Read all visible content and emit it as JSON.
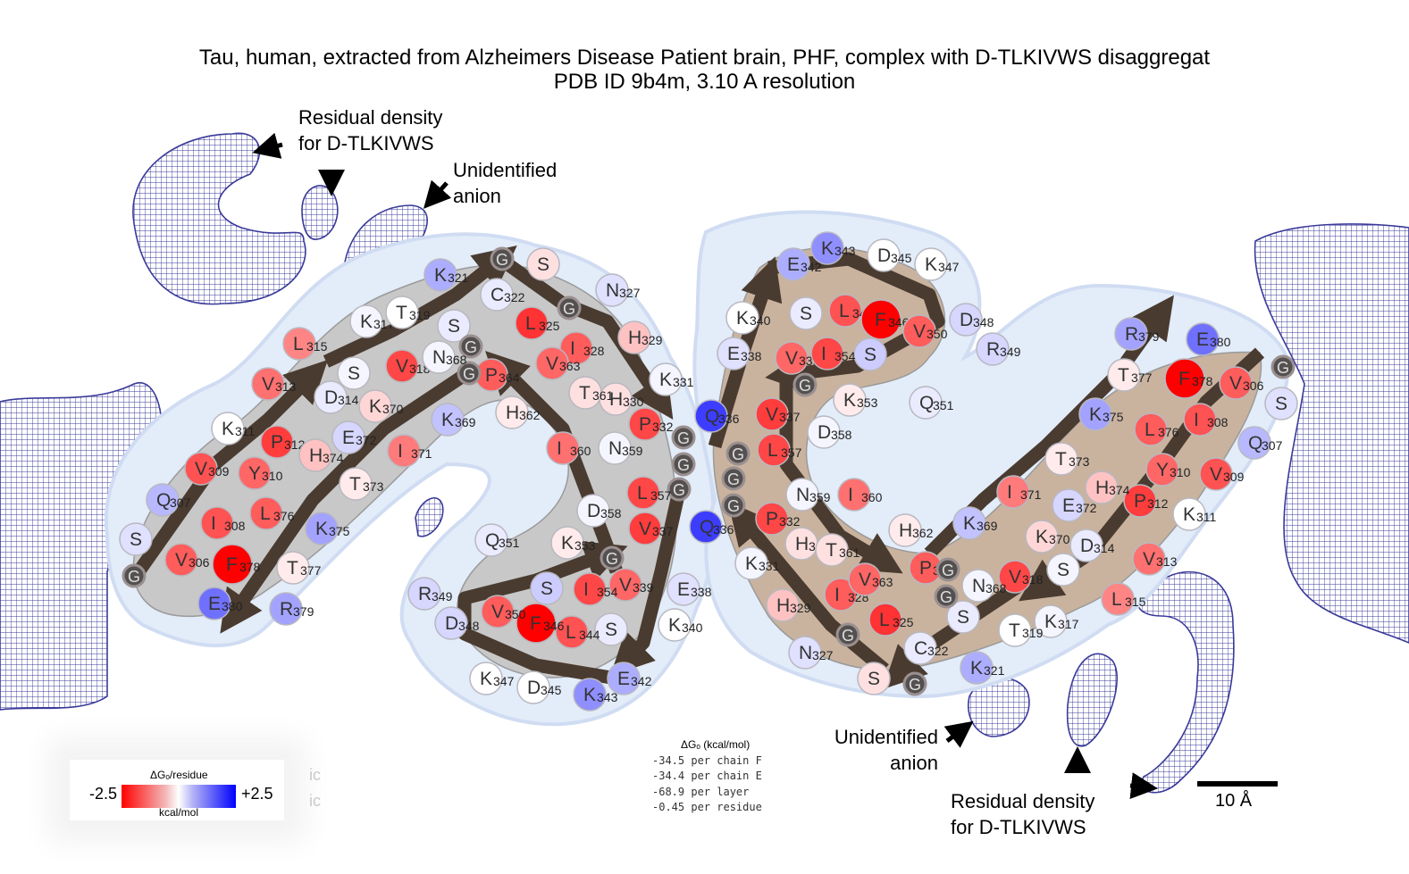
{
  "title": {
    "line1": "Tau, human, extracted from Alzheimers Disease Patient brain, PHF, complex with D-TLKIVWS disaggregat",
    "line2": "PDB ID 9b4m, 3.10 A resolution"
  },
  "annotations": {
    "residual_density_top": [
      "Residual  density",
      "for D-TLKIVWS"
    ],
    "unidentified_anion_top": [
      "Unidentified",
      "anion"
    ],
    "unidentified_anion_bottom": [
      "Unidentified",
      "anion"
    ],
    "residual_density_bottom": [
      "Residual  density",
      "for D-TLKIVWS"
    ]
  },
  "legend": {
    "title": "ΔGₒ/residue",
    "min_label": "-2.5",
    "max_label": "+2.5",
    "units": "kcal/mol",
    "min_color": "#ff0000",
    "max_color": "#0000ff"
  },
  "energy": {
    "header": "ΔGₒ (kcal/mol)",
    "lines": [
      "-34.5 per chain F",
      "-34.4 per chain E",
      "-68.9 per layer",
      "-0.45 per residue"
    ]
  },
  "faint_labels": [
    "ic",
    "ic"
  ],
  "scale_bar": {
    "label": "10 Å"
  },
  "colors": {
    "density_mesh": "#3a3a9a",
    "backbone_arrow": "#4a3b30",
    "chain_left_fill": "#c8c8c8",
    "chain_right_fill": "#c9b39f",
    "halo": "#dfe9f8",
    "glycine": "#555050"
  },
  "chains": {
    "left": [
      {
        "aa": "G",
        "num": "",
        "dg": 0,
        "glycine": true
      },
      {
        "aa": "S",
        "num": "",
        "dg": 0.3
      },
      {
        "aa": "V",
        "num": "306",
        "dg": -1.6
      },
      {
        "aa": "Q",
        "num": "307",
        "dg": 0.7
      },
      {
        "aa": "I",
        "num": "308",
        "dg": -1.7
      },
      {
        "aa": "V",
        "num": "309",
        "dg": -1.7
      },
      {
        "aa": "Y",
        "num": "310",
        "dg": -1.5
      },
      {
        "aa": "K",
        "num": "311",
        "dg": 0
      },
      {
        "aa": "P",
        "num": "312",
        "dg": -1.9
      },
      {
        "aa": "V",
        "num": "313",
        "dg": -1.4
      },
      {
        "aa": "D",
        "num": "314",
        "dg": 0.2
      },
      {
        "aa": "L",
        "num": "315",
        "dg": -1.2
      },
      {
        "aa": "S",
        "num": "",
        "dg": 0.1
      },
      {
        "aa": "K",
        "num": "317",
        "dg": 0.1
      },
      {
        "aa": "V",
        "num": "318",
        "dg": -1.8
      },
      {
        "aa": "T",
        "num": "319",
        "dg": 0
      },
      {
        "aa": "S",
        "num": "",
        "dg": 0.2
      },
      {
        "aa": "K",
        "num": "321",
        "dg": 0.8
      },
      {
        "aa": "C",
        "num": "322",
        "dg": 0.2
      },
      {
        "aa": "G",
        "num": "",
        "dg": 0,
        "glycine": true
      },
      {
        "aa": "S",
        "num": "",
        "dg": -0.3
      },
      {
        "aa": "L",
        "num": "325",
        "dg": -2.0
      },
      {
        "aa": "G",
        "num": "",
        "dg": 0,
        "glycine": true
      },
      {
        "aa": "N",
        "num": "327",
        "dg": 0.3
      },
      {
        "aa": "I",
        "num": "328",
        "dg": -1.6
      },
      {
        "aa": "H",
        "num": "329",
        "dg": -0.6
      },
      {
        "aa": "H",
        "num": "330",
        "dg": -0.3
      },
      {
        "aa": "K",
        "num": "331",
        "dg": 0.1
      },
      {
        "aa": "P",
        "num": "332",
        "dg": -1.8
      },
      {
        "aa": "G",
        "num": "",
        "dg": 0,
        "glycine": true
      },
      {
        "aa": "G",
        "num": "",
        "dg": 0,
        "glycine": true
      },
      {
        "aa": "G",
        "num": "",
        "dg": 0,
        "glycine": true
      },
      {
        "aa": "Q",
        "num": "336",
        "dg": 1.9
      },
      {
        "aa": "V",
        "num": "337",
        "dg": -1.9
      },
      {
        "aa": "E",
        "num": "338",
        "dg": 0.3
      },
      {
        "aa": "V",
        "num": "339",
        "dg": -1.5
      },
      {
        "aa": "K",
        "num": "340",
        "dg": 0
      },
      {
        "aa": "S",
        "num": "",
        "dg": 0.2
      },
      {
        "aa": "E",
        "num": "342",
        "dg": 0.8
      },
      {
        "aa": "K",
        "num": "343",
        "dg": 1.1
      },
      {
        "aa": "L",
        "num": "344",
        "dg": -1.7
      },
      {
        "aa": "D",
        "num": "345",
        "dg": 0
      },
      {
        "aa": "F",
        "num": "346",
        "dg": -2.5
      },
      {
        "aa": "K",
        "num": "347",
        "dg": 0
      },
      {
        "aa": "D",
        "num": "348",
        "dg": 0.4
      },
      {
        "aa": "R",
        "num": "349",
        "dg": 0.4
      },
      {
        "aa": "V",
        "num": "350",
        "dg": -1.6
      },
      {
        "aa": "Q",
        "num": "351",
        "dg": 0.2
      },
      {
        "aa": "S",
        "num": "",
        "dg": 0.5
      },
      {
        "aa": "K",
        "num": "353",
        "dg": -0.2
      },
      {
        "aa": "I",
        "num": "354",
        "dg": -1.8
      },
      {
        "aa": "G",
        "num": "",
        "dg": 0,
        "glycine": true
      },
      {
        "aa": "L",
        "num": "357",
        "dg": -1.8
      },
      {
        "aa": "D",
        "num": "358",
        "dg": 0.1
      },
      {
        "aa": "N",
        "num": "359",
        "dg": 0.1
      },
      {
        "aa": "I",
        "num": "360",
        "dg": -1.4
      },
      {
        "aa": "T",
        "num": "361",
        "dg": -0.3
      },
      {
        "aa": "H",
        "num": "362",
        "dg": -0.2
      },
      {
        "aa": "V",
        "num": "363",
        "dg": -1.5
      },
      {
        "aa": "P",
        "num": "364",
        "dg": -1.6
      },
      {
        "aa": "G",
        "num": "",
        "dg": 0,
        "glycine": true
      },
      {
        "aa": "G",
        "num": "",
        "dg": 0,
        "glycine": true
      },
      {
        "aa": "N",
        "num": "368",
        "dg": 0.1
      },
      {
        "aa": "K",
        "num": "369",
        "dg": 0.6
      },
      {
        "aa": "K",
        "num": "370",
        "dg": -0.4
      },
      {
        "aa": "I",
        "num": "371",
        "dg": -1.3
      },
      {
        "aa": "E",
        "num": "372",
        "dg": 0.4
      },
      {
        "aa": "T",
        "num": "373",
        "dg": -0.2
      },
      {
        "aa": "H",
        "num": "374",
        "dg": -0.6
      },
      {
        "aa": "K",
        "num": "375",
        "dg": 0.9
      },
      {
        "aa": "L",
        "num": "376",
        "dg": -1.6
      },
      {
        "aa": "T",
        "num": "377",
        "dg": -0.2
      },
      {
        "aa": "F",
        "num": "378",
        "dg": -2.5
      },
      {
        "aa": "R",
        "num": "379",
        "dg": 0.9
      },
      {
        "aa": "E",
        "num": "380",
        "dg": 1.4
      }
    ]
  }
}
